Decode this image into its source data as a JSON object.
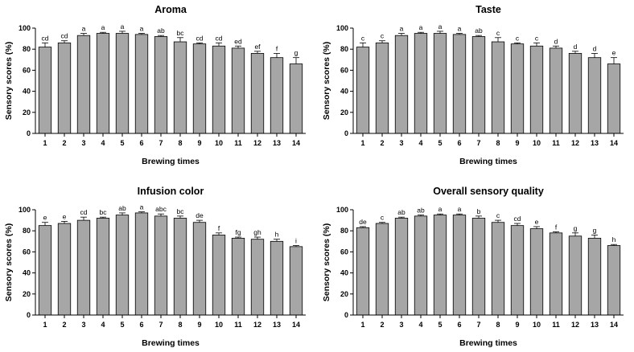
{
  "chart_data": [
    {
      "type": "bar",
      "title": "Aroma",
      "xlabel": "Brewing times",
      "ylabel": "Sensory scores (%)",
      "ylim": [
        0,
        100
      ],
      "yticks": [
        "0",
        "20",
        "40",
        "60",
        "80",
        "100"
      ],
      "categories": [
        "1",
        "2",
        "3",
        "4",
        "5",
        "6",
        "7",
        "8",
        "9",
        "10",
        "11",
        "12",
        "13",
        "14"
      ],
      "values": [
        82,
        86,
        93,
        95,
        95,
        94,
        92,
        87,
        85,
        83,
        81,
        76,
        72,
        66
      ],
      "errors": [
        4,
        2,
        2,
        1,
        2,
        1,
        1,
        4,
        1,
        3,
        2,
        2,
        4,
        6
      ],
      "labels": [
        "cd",
        "cd",
        "a",
        "a",
        "a",
        "a",
        "ab",
        "bc",
        "cd",
        "cd",
        "ed",
        "ef",
        "f",
        "g"
      ]
    },
    {
      "type": "bar",
      "title": "Taste",
      "xlabel": "Brewing times",
      "ylabel": "Sensory scores (%)",
      "ylim": [
        0,
        100
      ],
      "yticks": [
        "0",
        "20",
        "40",
        "60",
        "80",
        "100"
      ],
      "categories": [
        "1",
        "2",
        "3",
        "4",
        "5",
        "6",
        "7",
        "8",
        "9",
        "10",
        "11",
        "12",
        "13",
        "14"
      ],
      "values": [
        82,
        86,
        93,
        95,
        95,
        94,
        92,
        87,
        85,
        83,
        81,
        76,
        72,
        66
      ],
      "errors": [
        4,
        2,
        2,
        1,
        2,
        1,
        1,
        4,
        1,
        3,
        2,
        2,
        4,
        6
      ],
      "labels": [
        "c",
        "c",
        "a",
        "a",
        "a",
        "a",
        "ab",
        "c",
        "c",
        "c",
        "d",
        "d",
        "d",
        "e"
      ]
    },
    {
      "type": "bar",
      "title": "Infusion color",
      "xlabel": "Brewing times",
      "ylabel": "Sensory scores (%)",
      "ylim": [
        0,
        100
      ],
      "yticks": [
        "0",
        "20",
        "40",
        "60",
        "80",
        "100"
      ],
      "categories": [
        "1",
        "2",
        "3",
        "4",
        "5",
        "6",
        "7",
        "8",
        "9",
        "10",
        "11",
        "12",
        "13",
        "14"
      ],
      "values": [
        85,
        87,
        90,
        92,
        95,
        97,
        94,
        92,
        88,
        76,
        73,
        72,
        70,
        65
      ],
      "errors": [
        3,
        2,
        3,
        1,
        2,
        1,
        2,
        2,
        2,
        2,
        1,
        2,
        2,
        1
      ],
      "labels": [
        "e",
        "e",
        "cd",
        "bc",
        "ab",
        "a",
        "abc",
        "bc",
        "de",
        "f",
        "fg",
        "gh",
        "h",
        "i"
      ]
    },
    {
      "type": "bar",
      "title": "Overall sensory quality",
      "xlabel": "Brewing times",
      "ylabel": "Sensory scores (%)",
      "ylim": [
        0,
        100
      ],
      "yticks": [
        "0",
        "20",
        "40",
        "60",
        "80",
        "100"
      ],
      "categories": [
        "1",
        "2",
        "3",
        "4",
        "5",
        "6",
        "7",
        "8",
        "9",
        "10",
        "11",
        "12",
        "13",
        "14"
      ],
      "values": [
        83,
        87,
        92,
        94,
        95,
        95,
        92,
        88,
        85,
        82,
        78,
        75,
        73,
        66
      ],
      "errors": [
        1,
        1,
        1,
        1,
        1,
        1,
        2,
        2,
        2,
        2,
        1,
        3,
        3,
        1
      ],
      "labels": [
        "de",
        "c",
        "ab",
        "ab",
        "a",
        "a",
        "b",
        "c",
        "cd",
        "e",
        "f",
        "g",
        "g",
        "h"
      ]
    }
  ],
  "colors": {
    "bar_fill": "#a6a6a6",
    "bar_stroke": "#000000"
  }
}
